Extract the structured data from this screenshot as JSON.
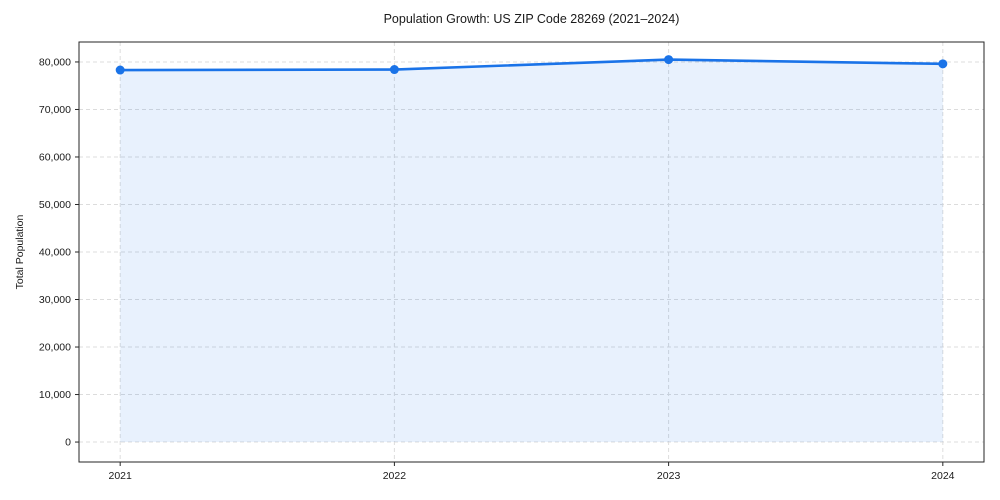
{
  "figure": {
    "background": "#ffffff"
  },
  "chart_data": {
    "type": "area",
    "title": "Population Growth: US ZIP Code 28269 (2021–2024)",
    "xlabel": "",
    "ylabel": "Total Population",
    "categories": [
      "2021",
      "2022",
      "2023",
      "2024"
    ],
    "series": [
      {
        "name": "Total Population",
        "values": [
          78300,
          78400,
          80500,
          79600
        ]
      }
    ],
    "yticks": [
      0,
      10000,
      20000,
      30000,
      40000,
      50000,
      60000,
      70000,
      80000
    ],
    "ylim": [
      -4200,
      84200
    ],
    "grid": true,
    "grid_style": "dashed",
    "legend_position": "none",
    "colors": {
      "line": "#1a73e8",
      "marker": "#1a73e8",
      "fill_rgba": "rgba(26,115,232,0.10)",
      "grid": "#dcdcdc",
      "spine": "#262626",
      "text": "#1a1a1a"
    }
  }
}
